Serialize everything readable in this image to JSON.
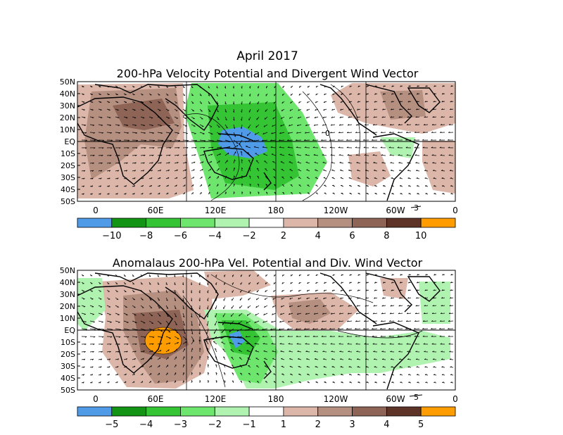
{
  "title": "April 2017",
  "colors": {
    "blue": "#4f9be8",
    "green_dark": "#149414",
    "green_mid": "#34c434",
    "green_light": "#6ee66e",
    "green_pale": "#b0f2b0",
    "white": "#ffffff",
    "brown_pale": "#dcb6a9",
    "brown_light": "#b58f80",
    "brown_mid": "#8e6456",
    "brown_dark": "#5e3328",
    "orange": "#ff9c00"
  },
  "panels": [
    {
      "title": "200-hPa Velocity Potential and Divergent Wind Vector",
      "lat_labels": [
        "50N",
        "40N",
        "30N",
        "20N",
        "10N",
        "EQ",
        "10S",
        "20S",
        "30S",
        "40S",
        "50S"
      ],
      "lon_labels": [
        "0",
        "60E",
        "120E",
        "180",
        "120W",
        "60W",
        "0"
      ],
      "vector_ref": "3",
      "colorbar_labels": [
        "−10",
        "−8",
        "−6",
        "−4",
        "−2",
        "2",
        "4",
        "6",
        "8",
        "10"
      ],
      "contour_label": "0"
    },
    {
      "title": "Anomalaus 200-hPa Vel. Potential and Div. Wind Vector",
      "lat_labels": [
        "50N",
        "40N",
        "30N",
        "20N",
        "10N",
        "EQ",
        "10S",
        "20S",
        "30S",
        "40S",
        "50S"
      ],
      "lon_labels": [
        "0",
        "60E",
        "120E",
        "180",
        "120W",
        "60W",
        "0"
      ],
      "vector_ref": "5",
      "colorbar_labels": [
        "−5",
        "−4",
        "−3",
        "−2",
        "−1",
        "1",
        "2",
        "3",
        "4",
        "5"
      ]
    }
  ]
}
